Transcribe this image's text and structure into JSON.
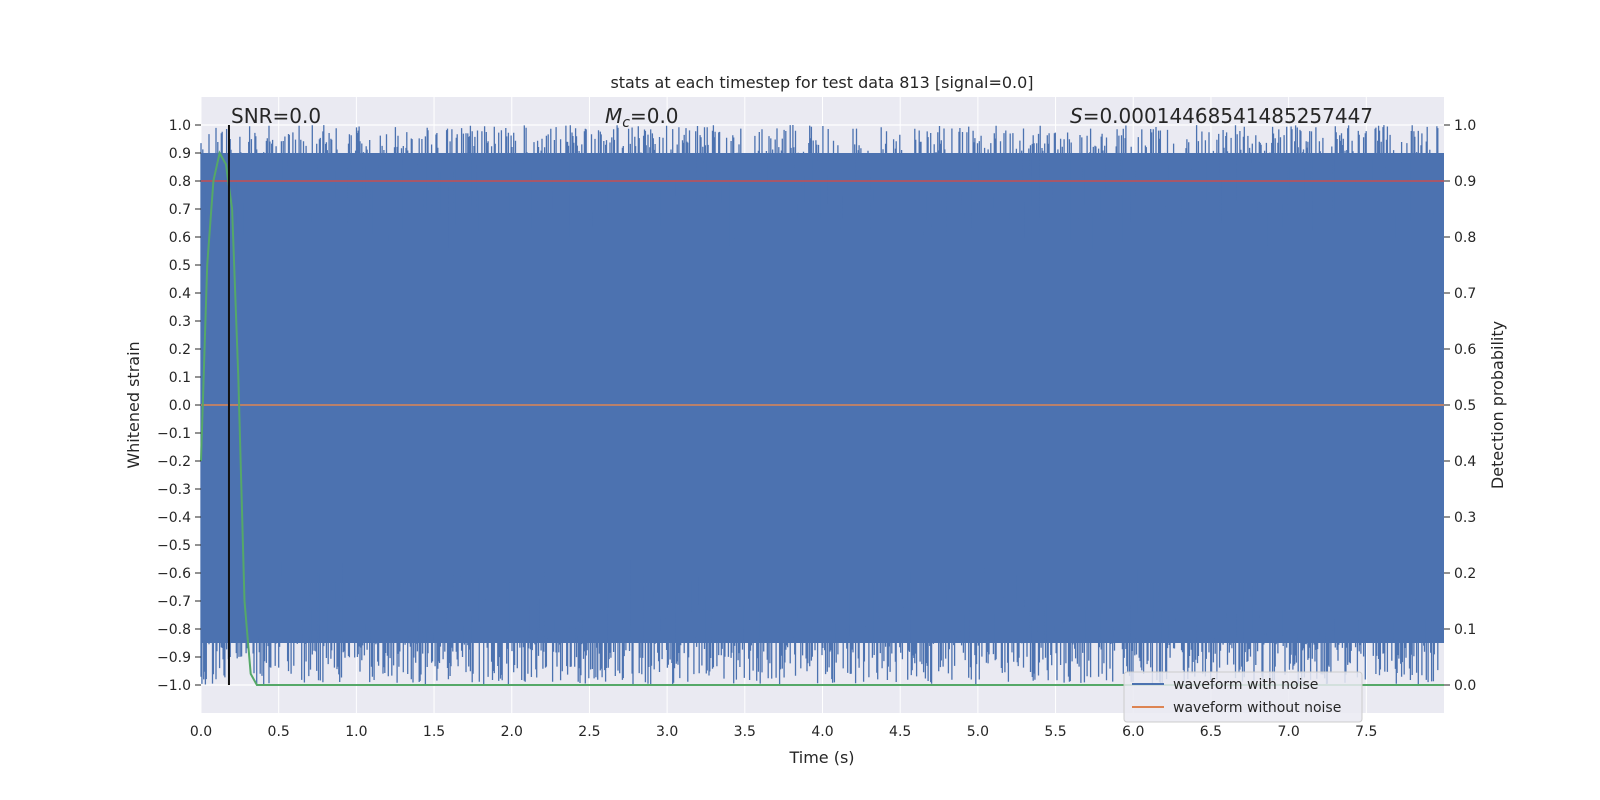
{
  "chart_data": {
    "type": "line",
    "title": "stats at each timestep for test data 813 [signal=0.0]",
    "xlabel": "Time (s)",
    "ylabel": "Whitened strain",
    "y2label": "Detection probability",
    "xlim": [
      0.0,
      8.0
    ],
    "ylim": [
      -1.1,
      1.1
    ],
    "y2lim": [
      -0.05,
      1.05
    ],
    "x_ticks": [
      "0.0",
      "0.5",
      "1.0",
      "1.5",
      "2.0",
      "2.5",
      "3.0",
      "3.5",
      "4.0",
      "4.5",
      "5.0",
      "5.5",
      "6.0",
      "6.5",
      "7.0",
      "7.5"
    ],
    "y_ticks": [
      "1.0",
      "0.9",
      "0.8",
      "0.7",
      "0.6",
      "0.5",
      "0.4",
      "0.3",
      "0.2",
      "0.1",
      "0.0",
      "−0.1",
      "−0.2",
      "−0.3",
      "−0.4",
      "−0.5",
      "−0.6",
      "−0.7",
      "−0.8",
      "−0.9",
      "−1.0"
    ],
    "y2_ticks": [
      "1.0",
      "0.9",
      "0.8",
      "0.7",
      "0.6",
      "0.5",
      "0.4",
      "0.3",
      "0.2",
      "0.1",
      "0.0"
    ],
    "grid": true,
    "legend_position": "bottom-right",
    "annotations": {
      "snr": "SNR=0.0",
      "mc_symbol": "M",
      "mc_sub": "c",
      "mc_value": "=0.0",
      "s_symbol": "S",
      "s_value": "=0.00014468541485257447"
    },
    "vertical_line_x": 0.18,
    "threshold": 0.8,
    "series": [
      {
        "name": "waveform with noise",
        "color": "#4c72b0",
        "description_range": [
          -1.0,
          1.0
        ]
      },
      {
        "name": "waveform without noise",
        "color": "#dd8452",
        "x": [
          0.0,
          8.0
        ],
        "values": [
          0.0,
          0.0
        ]
      },
      {
        "color": "#55a868",
        "axis": "right",
        "x": [
          0.0,
          0.04,
          0.08,
          0.12,
          0.16,
          0.2,
          0.24,
          0.28,
          0.32,
          0.36,
          0.4,
          8.0
        ],
        "values": [
          0.4,
          0.75,
          0.9,
          0.95,
          0.93,
          0.85,
          0.55,
          0.15,
          0.02,
          0.0,
          0.0,
          0.0
        ]
      },
      {
        "color": "#c44e52",
        "x": [
          0.0,
          8.0
        ],
        "values": [
          0.8,
          0.8
        ]
      }
    ]
  }
}
